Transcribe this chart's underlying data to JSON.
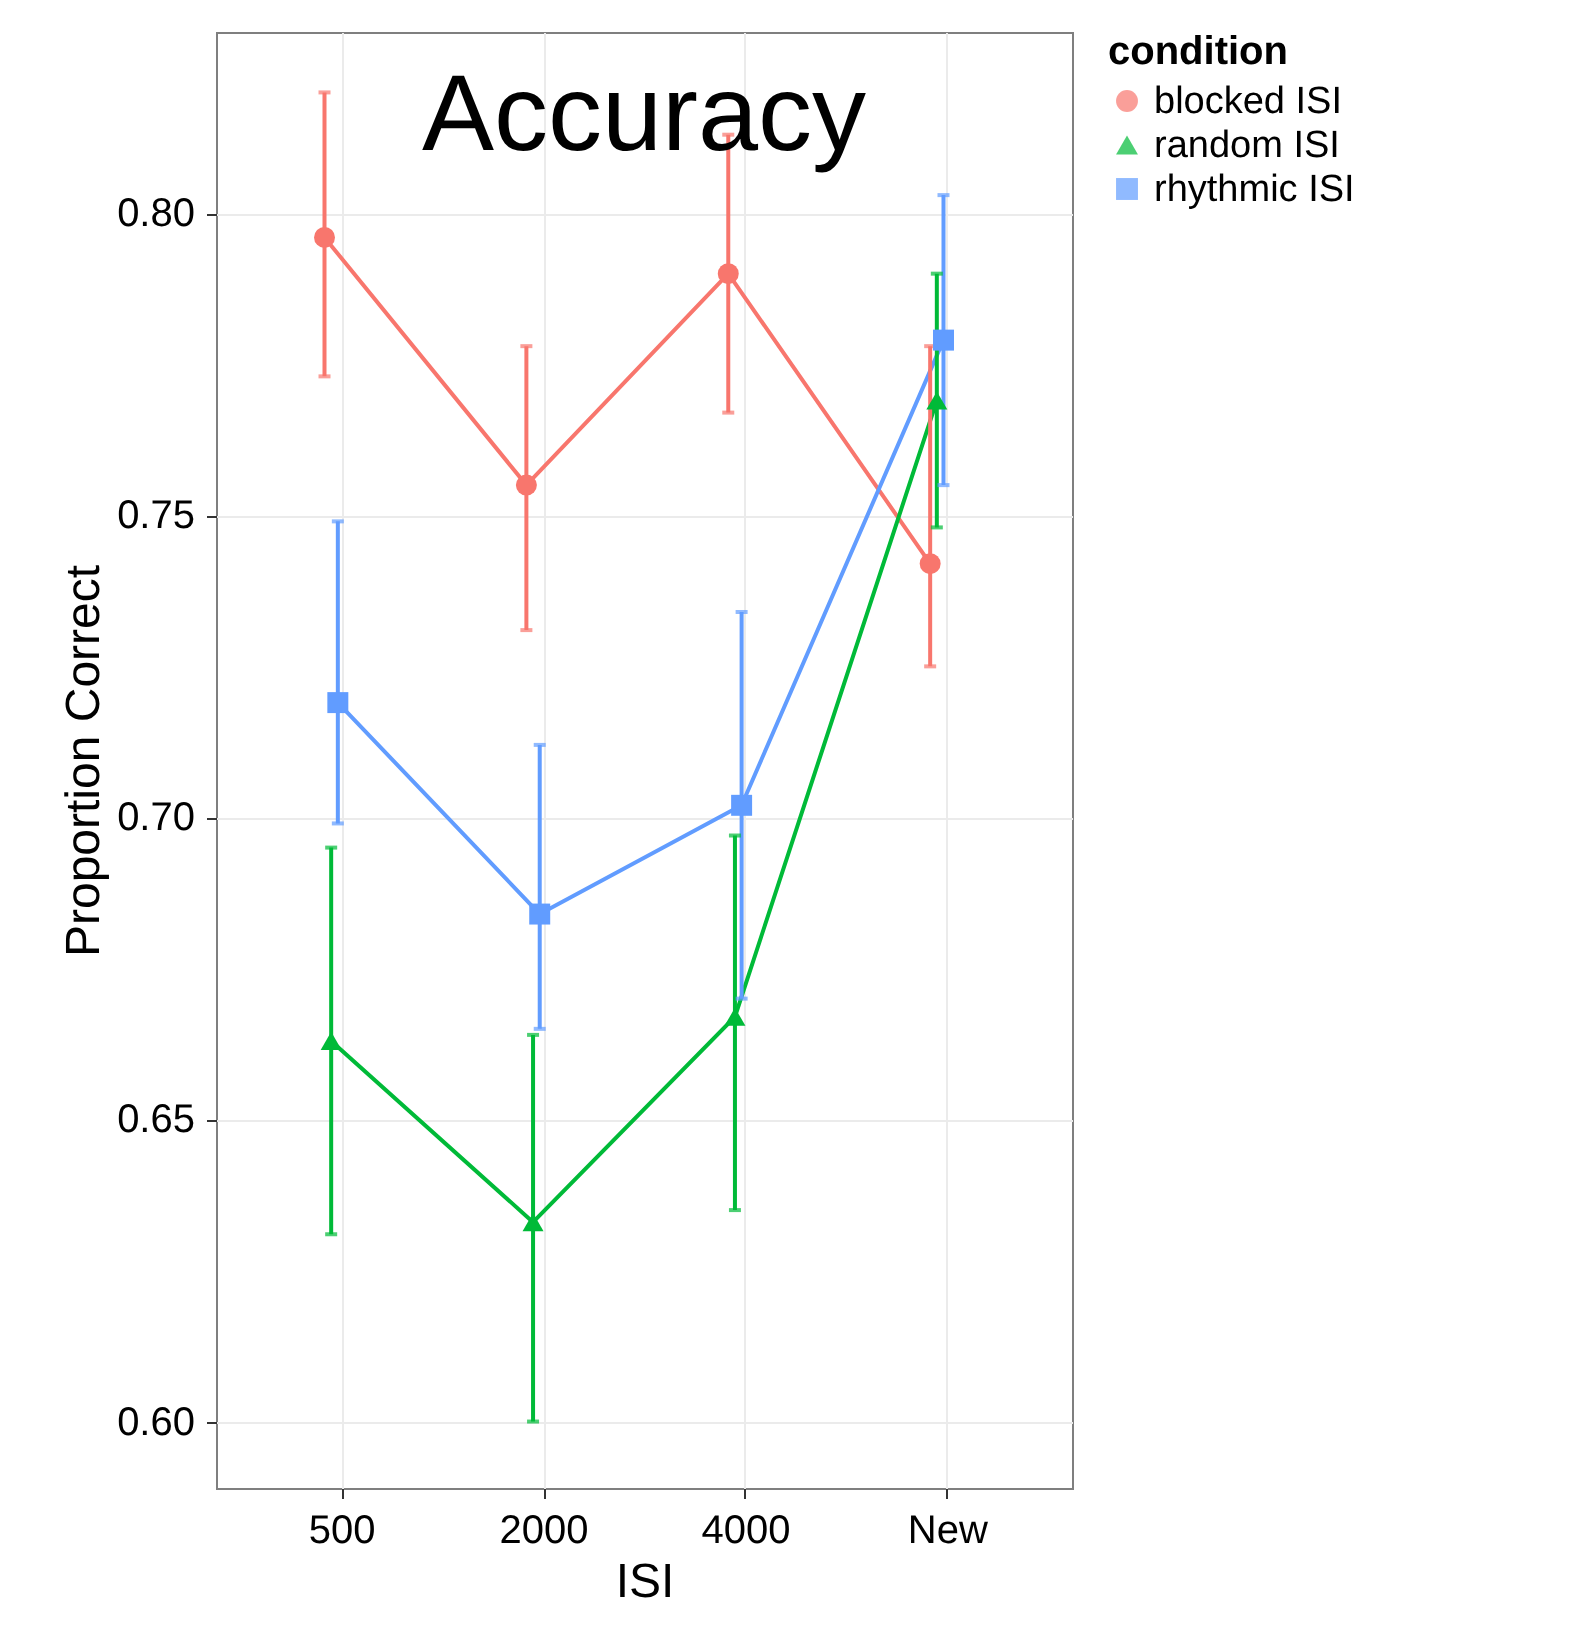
{
  "chart_data": {
    "type": "line",
    "title": "Accuracy",
    "xlabel": "ISI",
    "ylabel": "Proportion Correct",
    "legend_title": "condition",
    "categories": [
      "500",
      "2000",
      "4000",
      "New"
    ],
    "series": [
      {
        "name": "blocked ISI",
        "color": "#f8766d",
        "marker": "circle",
        "values": [
          0.796,
          0.755,
          0.79,
          0.742
        ],
        "errors": [
          [
            0.773,
            0.82
          ],
          [
            0.731,
            0.778
          ],
          [
            0.767,
            0.813
          ],
          [
            0.725,
            0.778
          ]
        ]
      },
      {
        "name": "random ISI",
        "color": "#00ba38",
        "marker": "triangle",
        "values": [
          0.663,
          0.633,
          0.667,
          0.769
        ],
        "errors": [
          [
            0.631,
            0.695
          ],
          [
            0.6,
            0.664
          ],
          [
            0.635,
            0.697
          ],
          [
            0.748,
            0.79
          ]
        ]
      },
      {
        "name": "rhythmic ISI",
        "color": "#619cff",
        "marker": "square",
        "values": [
          0.719,
          0.684,
          0.702,
          0.779
        ],
        "errors": [
          [
            0.699,
            0.749
          ],
          [
            0.665,
            0.712
          ],
          [
            0.67,
            0.734
          ],
          [
            0.755,
            0.803
          ]
        ]
      }
    ],
    "ylim": [
      0.589,
      0.83
    ],
    "yticks": [
      {
        "value": 0.6,
        "label": "0.60"
      },
      0.65,
      {
        "value": 0.7,
        "label": "0.70"
      },
      0.75,
      {
        "value": 0.8,
        "label": "0.80"
      }
    ],
    "grid": true,
    "legend": "right"
  }
}
